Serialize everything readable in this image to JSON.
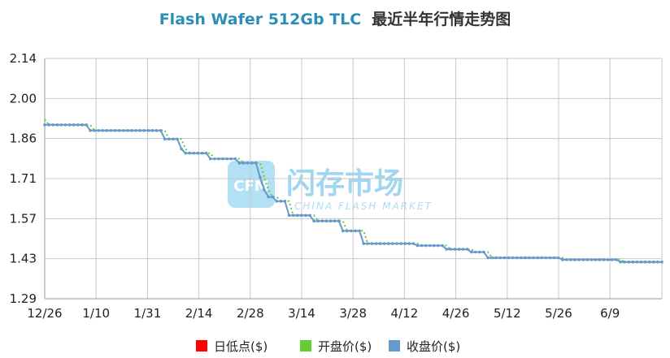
{
  "chart_data": {
    "type": "line",
    "title_en": "Flash Wafer 512Gb TLC",
    "title_cn": "最近半年行情走势图",
    "watermark": {
      "logo": "CFM",
      "cn": "闪存市场",
      "en": "CHINA FLASH MARKET"
    },
    "colors": {
      "low": "#ff0000",
      "open": "#66cc33",
      "close": "#6699cc",
      "grid": "#c8c8c8",
      "axis": "#999999"
    },
    "y_ticks": [
      "2.14",
      "2.00",
      "1.86",
      "1.71",
      "1.57",
      "1.43",
      "1.29"
    ],
    "ylim": [
      1.29,
      2.14
    ],
    "x_ticks": [
      "12/26",
      "1/10",
      "1/31",
      "2/14",
      "2/28",
      "3/14",
      "3/28",
      "4/12",
      "4/26",
      "5/12",
      "5/26",
      "6/9"
    ],
    "legend": [
      {
        "label": "日低点($)",
        "color": "#ff0000",
        "series": "low"
      },
      {
        "label": "开盘价($)",
        "color": "#66cc33",
        "series": "open"
      },
      {
        "label": "收盘价($)",
        "color": "#6699cc",
        "series": "close"
      }
    ],
    "close_steps": [
      {
        "from": 0,
        "value": 1.905
      },
      {
        "from": 11,
        "value": 1.885
      },
      {
        "from": 29,
        "value": 1.855
      },
      {
        "from": 33,
        "value": 1.82
      },
      {
        "from": 34,
        "value": 1.805
      },
      {
        "from": 40,
        "value": 1.785
      },
      {
        "from": 47,
        "value": 1.77
      },
      {
        "from": 52,
        "value": 1.72
      },
      {
        "from": 53,
        "value": 1.675
      },
      {
        "from": 54,
        "value": 1.65
      },
      {
        "from": 56,
        "value": 1.635
      },
      {
        "from": 59,
        "value": 1.585
      },
      {
        "from": 65,
        "value": 1.565
      },
      {
        "from": 72,
        "value": 1.53
      },
      {
        "from": 77,
        "value": 1.485
      },
      {
        "from": 90,
        "value": 1.478
      },
      {
        "from": 97,
        "value": 1.465
      },
      {
        "from": 103,
        "value": 1.455
      },
      {
        "from": 107,
        "value": 1.435
      },
      {
        "from": 125,
        "value": 1.428
      },
      {
        "from": 139,
        "value": 1.42
      },
      {
        "from": 149,
        "value": 1.42
      }
    ],
    "total_points": 150
  }
}
